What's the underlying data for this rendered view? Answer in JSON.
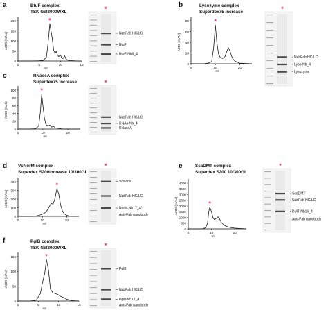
{
  "panels": [
    {
      "id": "a",
      "letter": "a",
      "title_lines": [
        "BtuF complex",
        "TSK Gel3000WXL"
      ],
      "ylabel": "A280 (mAU)",
      "xlabel": "ml",
      "yticks": [
        "200",
        "150",
        "100",
        "50",
        "0"
      ],
      "xticks": [
        "0",
        "5",
        "10",
        "15"
      ],
      "gel_markers": [
        "250",
        "150",
        "100",
        "75",
        "50",
        "37",
        "25",
        "20",
        "15",
        "10"
      ],
      "band_labels": [
        "NabFab HC/LC",
        "BtuF",
        "BtuF-Nb9_4"
      ]
    },
    {
      "id": "b",
      "letter": "b",
      "title_lines": [
        "Lysozyme complex",
        "Superdex75 Increase"
      ],
      "ylabel": "A280 (mAU)",
      "xlabel": "ml",
      "yticks": [
        "80",
        "60",
        "40",
        "20",
        "0"
      ],
      "xticks": [
        "0",
        "10",
        "20"
      ],
      "gel_markers": [
        "250",
        "150",
        "100",
        "75",
        "50",
        "37",
        "25",
        "20",
        "15",
        "10"
      ],
      "band_labels": [
        "NabFab HC/LC",
        "Lyso-Nb_4",
        "Lysozyme"
      ]
    },
    {
      "id": "c",
      "letter": "c",
      "title_lines": [
        "RNaseA complex",
        "Superdex75 Increase"
      ],
      "ylabel": "A280 (mAU)",
      "xlabel": "ml",
      "yticks": [
        "100",
        "80",
        "60",
        "40",
        "20",
        "0"
      ],
      "xticks": [
        "0",
        "10",
        "20"
      ],
      "gel_markers": [
        "250",
        "150",
        "100",
        "75",
        "50",
        "37",
        "25",
        "20",
        "15",
        "10"
      ],
      "band_labels": [
        "NabFab HC/LC",
        "RNAs-Nb_4",
        "RNaseA"
      ]
    },
    {
      "id": "d",
      "letter": "d",
      "title_lines": [
        "VcNorM complex",
        "Superdex S200increase 10/300GL"
      ],
      "ylabel": "A280 (mAU)",
      "xlabel": "ml",
      "yticks": [
        "400",
        "300",
        "200",
        "100",
        "0"
      ],
      "xticks": [
        "0",
        "10",
        "20"
      ],
      "gel_markers": [
        "250",
        "150",
        "100",
        "75",
        "50",
        "37",
        "25",
        "20",
        "15",
        "10"
      ],
      "band_labels": [
        "VcNorM",
        "NabFab HC/LC",
        "NorM-Nb17_4/",
        "Anti-Fab nanobody"
      ]
    },
    {
      "id": "e",
      "letter": "e",
      "title_lines": [
        "ScaDMT complex",
        "Superdex S200 10/300GL"
      ],
      "ylabel": "A280 (mAU)",
      "xlabel": "ml",
      "yticks": [
        "4000",
        "3500",
        "3000",
        "2500",
        "2000",
        "1500",
        "1000",
        "500",
        "0"
      ],
      "xticks": [
        "0",
        "10",
        "20"
      ],
      "gel_markers": [
        "250",
        "150",
        "100",
        "75",
        "50",
        "37",
        "25",
        "20",
        "15",
        "10"
      ],
      "band_labels": [
        "ScaDMT",
        "NabFab HC/LC",
        "DMT-Nb16_4/",
        "Anti-Fab nanobody"
      ]
    },
    {
      "id": "f",
      "letter": "f",
      "title_lines": [
        "PglB complex",
        "TSK Gel3000WXL"
      ],
      "ylabel": "A280 (mAU)",
      "xlabel": "ml",
      "yticks": [
        "150",
        "100",
        "50",
        "0"
      ],
      "xticks": [
        "0",
        "5",
        "10",
        "15"
      ],
      "gel_markers": [
        "250",
        "150",
        "100",
        "75",
        "50",
        "37",
        "25",
        "20",
        "15",
        "10"
      ],
      "band_labels": [
        "PglB",
        "NabFab HC/LC",
        "Pglb-Nb17_4",
        "Anti-Fab nanobody"
      ]
    }
  ],
  "peak_marker": "*",
  "colors": {
    "trace": "#1a1a1a",
    "peak_star": "#e8336d",
    "gel_bg": "#f4f4f4",
    "gel_band": "#4a4a4a"
  },
  "chart_data": [
    {
      "type": "line",
      "panel": "a",
      "xlabel": "ml",
      "ylabel": "A280 (mAU)",
      "xlim": [
        0,
        15
      ],
      "ylim": [
        0,
        200
      ],
      "series": [
        {
          "x": [
            0,
            3,
            5,
            6,
            6.7,
            7.1,
            7.5,
            8.0,
            8.4,
            8.7,
            9.0,
            9.3,
            9.6,
            10.0,
            10.3,
            10.6,
            11.0,
            11.3,
            11.7,
            12.2,
            13,
            14,
            15
          ],
          "y": [
            0,
            0,
            1,
            3,
            20,
            90,
            185,
            120,
            55,
            38,
            48,
            30,
            22,
            30,
            15,
            12,
            26,
            10,
            4,
            2,
            1,
            0,
            0
          ]
        }
      ]
    },
    {
      "type": "line",
      "panel": "b",
      "xlabel": "ml",
      "ylabel": "A280 (mAU)",
      "xlim": [
        0,
        25
      ],
      "ylim": [
        0,
        80
      ],
      "series": [
        {
          "x": [
            0,
            5,
            7,
            8.5,
            9.3,
            10,
            10.6,
            11.3,
            12,
            13,
            14,
            14.6,
            15.3,
            16,
            16.6,
            17.2,
            18,
            19,
            20,
            25
          ],
          "y": [
            0,
            0,
            1,
            4,
            30,
            72,
            40,
            18,
            12,
            10,
            14,
            22,
            30,
            24,
            15,
            9,
            5,
            3,
            1,
            0
          ]
        }
      ]
    },
    {
      "type": "line",
      "panel": "c",
      "xlabel": "ml",
      "ylabel": "A280 (mAU)",
      "xlim": [
        0,
        25
      ],
      "ylim": [
        0,
        100
      ],
      "series": [
        {
          "x": [
            0,
            5,
            7,
            8.3,
            9.0,
            9.5,
            10.0,
            10.6,
            11.2,
            12.0,
            12.8,
            13.5,
            14.3,
            15,
            16,
            17,
            18,
            20,
            25
          ],
          "y": [
            0,
            0,
            1,
            8,
            45,
            90,
            60,
            28,
            12,
            8,
            10,
            5,
            7,
            3,
            2,
            1,
            0,
            0,
            0
          ]
        }
      ]
    },
    {
      "type": "line",
      "panel": "d",
      "xlabel": "ml",
      "ylabel": "A280 (mAU)",
      "xlim": [
        0,
        25
      ],
      "ylim": [
        0,
        400
      ],
      "series": [
        {
          "x": [
            0,
            6,
            8,
            9,
            10,
            11,
            12,
            13,
            13.6,
            14.4,
            15.2,
            16.0,
            16.8,
            17.5,
            18.2,
            19,
            20,
            21,
            22,
            23,
            25
          ],
          "y": [
            0,
            0,
            8,
            15,
            25,
            40,
            70,
            120,
            150,
            140,
            210,
            320,
            250,
            130,
            65,
            30,
            12,
            5,
            2,
            1,
            0
          ]
        }
      ]
    },
    {
      "type": "line",
      "panel": "e",
      "xlabel": "ml",
      "ylabel": "A280 (mAU)",
      "xlim": [
        0,
        25
      ],
      "ylim": [
        0,
        4000
      ],
      "series": [
        {
          "x": [
            0,
            6,
            7.5,
            8.3,
            8.8,
            9.3,
            10,
            10.6,
            11.3,
            12.0,
            12.8,
            13.5,
            14.3,
            15,
            16,
            17,
            18,
            20,
            25
          ],
          "y": [
            0,
            0,
            100,
            500,
            1500,
            1900,
            1500,
            1000,
            800,
            900,
            1050,
            850,
            550,
            400,
            250,
            180,
            120,
            60,
            0
          ]
        }
      ]
    },
    {
      "type": "line",
      "panel": "f",
      "xlabel": "ml",
      "ylabel": "A280 (mAU)",
      "xlim": [
        0,
        15
      ],
      "ylim": [
        0,
        150
      ],
      "series": [
        {
          "x": [
            0,
            3,
            4.5,
            5.5,
            6.0,
            6.6,
            7.0,
            7.5,
            8.0,
            8.6,
            9.2,
            9.8,
            10.5,
            11.2,
            12,
            13,
            14,
            15
          ],
          "y": [
            0,
            0,
            3,
            25,
            60,
            95,
            140,
            105,
            40,
            28,
            25,
            22,
            16,
            12,
            6,
            2,
            1,
            0
          ]
        }
      ]
    }
  ]
}
